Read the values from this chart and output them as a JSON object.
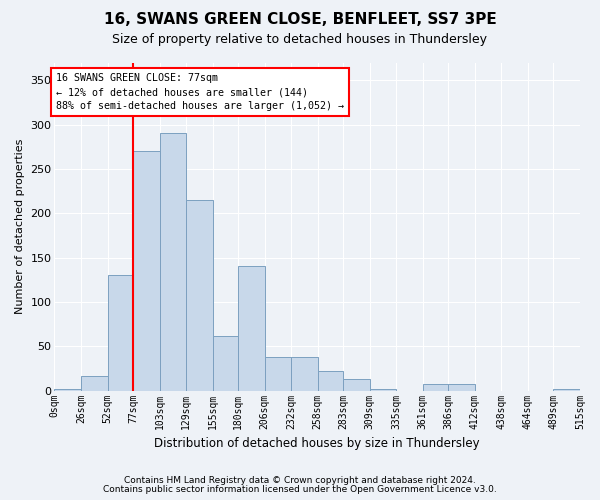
{
  "title": "16, SWANS GREEN CLOSE, BENFLEET, SS7 3PE",
  "subtitle": "Size of property relative to detached houses in Thundersley",
  "xlabel": "Distribution of detached houses by size in Thundersley",
  "ylabel": "Number of detached properties",
  "bar_color": "#c8d8ea",
  "bar_edge_color": "#7ca0c0",
  "bins": [
    "0sqm",
    "26sqm",
    "52sqm",
    "77sqm",
    "103sqm",
    "129sqm",
    "155sqm",
    "180sqm",
    "206sqm",
    "232sqm",
    "258sqm",
    "283sqm",
    "309sqm",
    "335sqm",
    "361sqm",
    "386sqm",
    "412sqm",
    "438sqm",
    "464sqm",
    "489sqm",
    "515sqm"
  ],
  "bin_edges": [
    0,
    26,
    52,
    77,
    103,
    129,
    155,
    180,
    206,
    232,
    258,
    283,
    309,
    335,
    361,
    386,
    412,
    438,
    464,
    489,
    515
  ],
  "values": [
    2,
    16,
    130,
    270,
    290,
    215,
    62,
    140,
    38,
    38,
    22,
    13,
    2,
    0,
    7,
    7,
    0,
    0,
    0,
    2
  ],
  "ylim": [
    0,
    370
  ],
  "yticks": [
    0,
    50,
    100,
    150,
    200,
    250,
    300,
    350
  ],
  "property_size": 77,
  "annotation_line1": "16 SWANS GREEN CLOSE: 77sqm",
  "annotation_line2": "← 12% of detached houses are smaller (144)",
  "annotation_line3": "88% of semi-detached houses are larger (1,052) →",
  "redline_x": 77,
  "footer1": "Contains HM Land Registry data © Crown copyright and database right 2024.",
  "footer2": "Contains public sector information licensed under the Open Government Licence v3.0.",
  "fig_facecolor": "#eef2f7",
  "plot_facecolor": "#eef2f7"
}
